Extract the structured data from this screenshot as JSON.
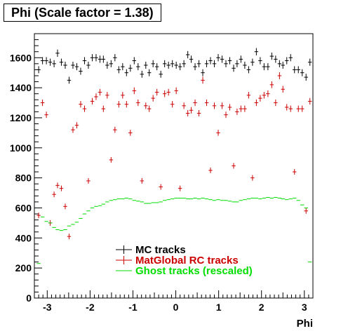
{
  "chart_data": {
    "type": "scatter",
    "title": "Phi (Scale factor = 1.38)",
    "xlabel": "Phi",
    "ylabel": "",
    "xlim": [
      -3.3,
      3.2
    ],
    "ylim": [
      0,
      1760
    ],
    "xticks": [
      -3,
      -2,
      -1,
      0,
      1,
      2,
      3
    ],
    "yticks": [
      0,
      200,
      400,
      600,
      800,
      1000,
      1200,
      1400,
      1600
    ],
    "grid": false,
    "legend_position": "bottom-center",
    "series": [
      {
        "name": "MC tracks",
        "color": "#000000",
        "x": [
          -3.2,
          -3.11,
          -3.02,
          -2.93,
          -2.84,
          -2.76,
          -2.67,
          -2.58,
          -2.49,
          -2.4,
          -2.31,
          -2.22,
          -2.13,
          -2.04,
          -1.95,
          -1.86,
          -1.77,
          -1.69,
          -1.6,
          -1.51,
          -1.42,
          -1.33,
          -1.24,
          -1.15,
          -1.06,
          -0.97,
          -0.88,
          -0.79,
          -0.7,
          -0.62,
          -0.53,
          -0.44,
          -0.35,
          -0.26,
          -0.17,
          -0.08,
          0.01,
          0.1,
          0.19,
          0.28,
          0.36,
          0.45,
          0.54,
          0.63,
          0.72,
          0.81,
          0.9,
          0.99,
          1.08,
          1.17,
          1.26,
          1.35,
          1.43,
          1.52,
          1.61,
          1.7,
          1.79,
          1.88,
          1.97,
          2.06,
          2.15,
          2.24,
          2.33,
          2.42,
          2.5,
          2.59,
          2.68,
          2.77,
          2.86,
          2.95,
          3.04,
          3.13
        ],
        "y": [
          1520,
          1580,
          1580,
          1570,
          1560,
          1630,
          1570,
          1550,
          1450,
          1550,
          1540,
          1510,
          1580,
          1550,
          1600,
          1600,
          1590,
          1590,
          1550,
          1560,
          1600,
          1520,
          1540,
          1500,
          1530,
          1580,
          1540,
          1490,
          1550,
          1500,
          1560,
          1540,
          1490,
          1560,
          1550,
          1560,
          1550,
          1540,
          1560,
          1620,
          1590,
          1540,
          1560,
          1500,
          1560,
          1580,
          1560,
          1600,
          1590,
          1560,
          1580,
          1530,
          1560,
          1590,
          1550,
          1520,
          1570,
          1640,
          1580,
          1540,
          1540,
          1610,
          1590,
          1560,
          1550,
          1580,
          1600,
          1520,
          1520,
          1500,
          1470,
          1570
        ]
      },
      {
        "name": "MatGlobal RC tracks",
        "color": "#cc0000",
        "x": [
          -3.2,
          -3.11,
          -3.02,
          -2.93,
          -2.84,
          -2.76,
          -2.67,
          -2.58,
          -2.49,
          -2.4,
          -2.31,
          -2.22,
          -2.13,
          -2.04,
          -1.95,
          -1.86,
          -1.77,
          -1.69,
          -1.6,
          -1.51,
          -1.42,
          -1.33,
          -1.24,
          -1.15,
          -1.06,
          -0.97,
          -0.88,
          -0.79,
          -0.7,
          -0.62,
          -0.53,
          -0.44,
          -0.35,
          -0.26,
          -0.17,
          -0.08,
          0.01,
          0.1,
          0.19,
          0.28,
          0.36,
          0.45,
          0.54,
          0.63,
          0.72,
          0.81,
          0.9,
          0.99,
          1.08,
          1.17,
          1.26,
          1.35,
          1.43,
          1.52,
          1.61,
          1.7,
          1.79,
          1.88,
          1.97,
          2.06,
          2.15,
          2.24,
          2.33,
          2.42,
          2.5,
          2.59,
          2.68,
          2.77,
          2.86,
          2.95,
          3.04,
          3.13
        ],
        "y": [
          550,
          1300,
          1220,
          500,
          690,
          750,
          730,
          610,
          410,
          1120,
          1150,
          1290,
          1260,
          780,
          1310,
          1340,
          1370,
          1260,
          1350,
          920,
          1120,
          1290,
          1350,
          1290,
          1100,
          1380,
          1300,
          780,
          1280,
          1260,
          1330,
          1370,
          740,
          1360,
          1370,
          1290,
          1380,
          730,
          1280,
          1230,
          1250,
          1300,
          1230,
          1450,
          1300,
          850,
          1280,
          1100,
          1280,
          1220,
          1270,
          880,
          1240,
          1260,
          1260,
          1350,
          800,
          1300,
          1330,
          1350,
          1360,
          1420,
          1300,
          1480,
          1390,
          1270,
          1260,
          840,
          1260,
          1260,
          580,
          1310
        ]
      },
      {
        "name": "Ghost tracks (rescaled)",
        "color": "#00dd00",
        "x": [
          -3.2,
          -3.11,
          -3.02,
          -2.93,
          -2.84,
          -2.76,
          -2.67,
          -2.58,
          -2.49,
          -2.4,
          -2.31,
          -2.22,
          -2.13,
          -2.04,
          -1.95,
          -1.86,
          -1.77,
          -1.69,
          -1.6,
          -1.51,
          -1.42,
          -1.33,
          -1.24,
          -1.15,
          -1.06,
          -0.97,
          -0.88,
          -0.79,
          -0.7,
          -0.62,
          -0.53,
          -0.44,
          -0.35,
          -0.26,
          -0.17,
          -0.08,
          0.01,
          0.1,
          0.19,
          0.28,
          0.36,
          0.45,
          0.54,
          0.63,
          0.72,
          0.81,
          0.9,
          0.99,
          1.08,
          1.17,
          1.26,
          1.35,
          1.43,
          1.52,
          1.61,
          1.7,
          1.79,
          1.88,
          1.97,
          2.06,
          2.15,
          2.24,
          2.33,
          2.42,
          2.5,
          2.59,
          2.68,
          2.77,
          2.86,
          2.95,
          3.04,
          3.13
        ],
        "y": [
          230,
          540,
          510,
          500,
          470,
          455,
          450,
          455,
          480,
          490,
          505,
          530,
          560,
          580,
          600,
          610,
          615,
          625,
          640,
          650,
          655,
          660,
          660,
          665,
          660,
          650,
          645,
          640,
          630,
          630,
          635,
          635,
          640,
          650,
          655,
          660,
          665,
          665,
          665,
          660,
          660,
          665,
          660,
          665,
          660,
          655,
          650,
          655,
          650,
          650,
          645,
          640,
          640,
          650,
          655,
          660,
          665,
          665,
          660,
          665,
          670,
          665,
          670,
          665,
          660,
          655,
          660,
          665,
          650,
          620,
          600,
          240
        ]
      }
    ]
  }
}
